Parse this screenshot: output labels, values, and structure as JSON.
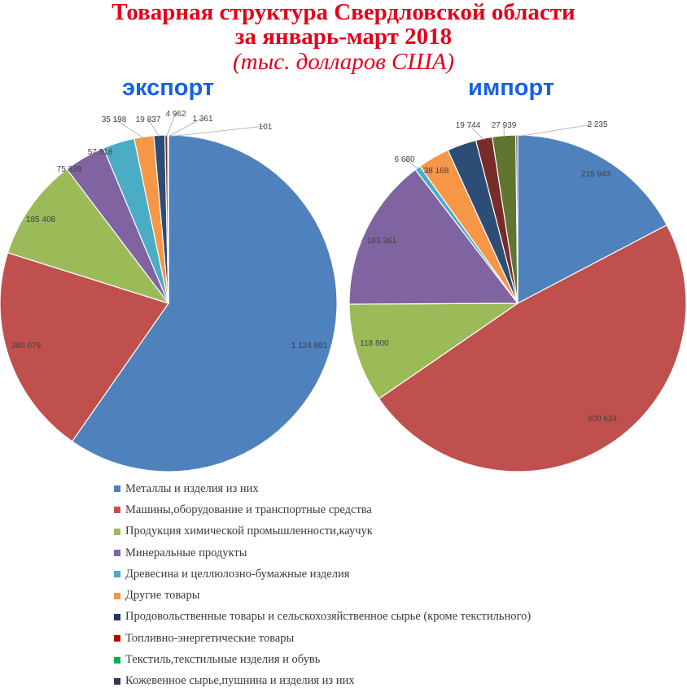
{
  "title": {
    "line1": "Товарная структура Свердловской области",
    "line2": "за январь-март 2018",
    "line3": "(тыс. долларов США)"
  },
  "chart_data": [
    {
      "type": "pie",
      "title": "экспорт",
      "categories": [
        "Металлы и изделия из них",
        "Машины,оборудование и транспортные средства",
        "Продукция химической промышленности,каучук",
        "Минеральные продукты",
        "Древесина и целлюлозно-бумажные изделия",
        "Другие товары",
        "Продовольственные товары и сельскохозяйственное сырье (кроме текстильного)",
        "Топливно-энергетические товары",
        "Текстиль,текстильные изделия и обувь",
        "Кожевенное сырье,пушнина и изделия из них"
      ],
      "values": [
        1124891,
        380079,
        185408,
        75339,
        57518,
        35198,
        19837,
        4962,
        1361,
        101
      ],
      "labels": [
        "1 124 891",
        "380 079",
        "185 408",
        "75 339",
        "57 518",
        "35 198",
        "19 837",
        "4 962",
        "1 361",
        "101"
      ]
    },
    {
      "type": "pie",
      "title": "импорт",
      "categories": [
        "Металлы и изделия из них",
        "Машины,оборудование и транспортные средства",
        "Продукция химической промышленности,каучук",
        "Минеральные продукты",
        "Древесина и целлюлозно-бумажные изделия",
        "Другие товары",
        "Продовольственные товары и сельскохозяйственное сырье (кроме текстильного)",
        "Топливно-энергетические товары",
        "Текстиль,текстильные изделия и обувь",
        "Кожевенное сырье,пушнина и изделия из них"
      ],
      "values": [
        215943,
        600624,
        118800,
        183361,
        6680,
        38168,
        35000,
        19744,
        27939,
        2235
      ],
      "labels": [
        "215 943",
        "600 624",
        "118 800",
        "183 361",
        "6 680",
        "38 168",
        "",
        "19 744",
        "27 939",
        "2 235"
      ]
    }
  ],
  "legend": {
    "position": "bottom",
    "items": [
      "Металлы и изделия из них",
      "Машины,оборудование и транспортные средства",
      "Продукция химической промышленности,каучук",
      "Минеральные продукты",
      "Древесина и целлюлозно-бумажные изделия",
      "Другие товары",
      "Продовольственные товары и сельскохозяйственное сырье (кроме текстильного)",
      "Топливно-энергетические товары",
      "Текстиль,текстильные изделия и обувь",
      "Кожевенное сырье,пушнина и изделия из них"
    ]
  },
  "colors": [
    "#4f81bd",
    "#c0504d",
    "#9bbb59",
    "#8064a2",
    "#4bacc6",
    "#f79646",
    "#2c4d75",
    "#772c2a",
    "#5f7530",
    "#4d3b62"
  ],
  "legend_colors": [
    "#4f81bd",
    "#c0504d",
    "#9bbb59",
    "#8064a2",
    "#4bacc6",
    "#f79646",
    "#1f3864",
    "#c00000",
    "#00b050",
    "#3f3151"
  ]
}
